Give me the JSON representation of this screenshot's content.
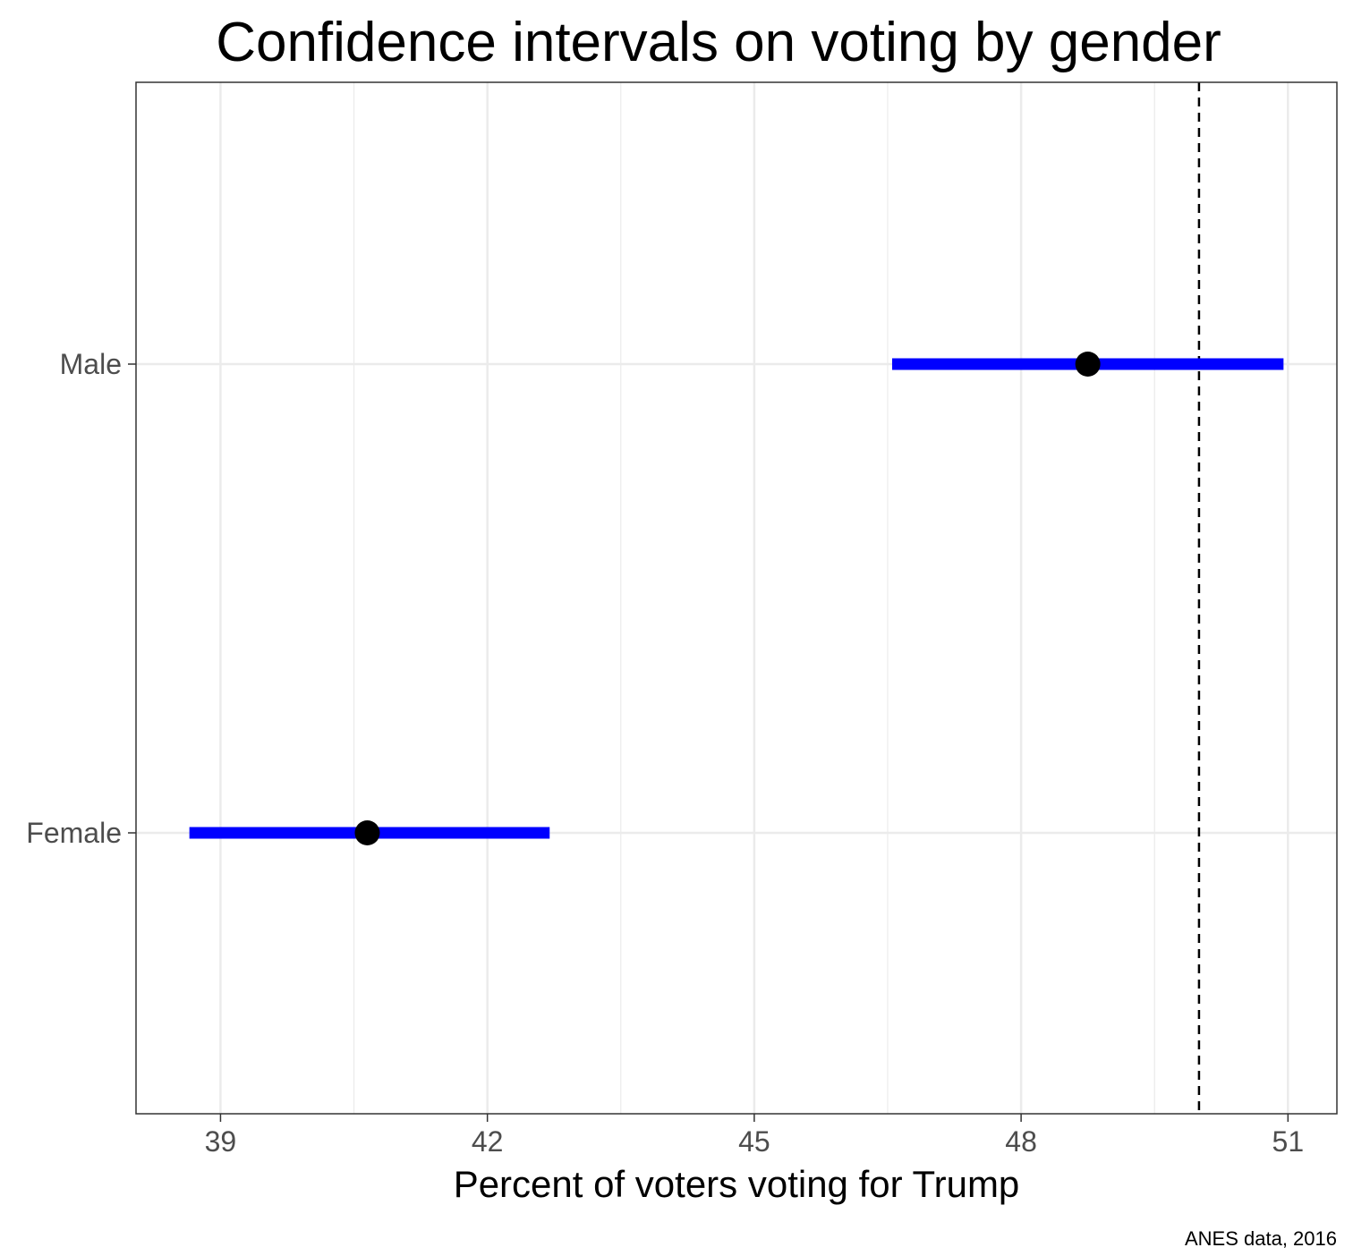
{
  "chart_data": {
    "type": "errorbar",
    "title": "Confidence intervals on voting by gender",
    "xlabel": "Percent of voters voting for Trump",
    "ylabel": "",
    "caption": "ANES data, 2016",
    "xlim": [
      38.05,
      51.55
    ],
    "x_ticks": [
      39,
      42,
      45,
      48,
      51
    ],
    "x_minor_ticks": [
      40.5,
      43.5,
      46.5,
      49.5
    ],
    "categories": [
      "Male",
      "Female"
    ],
    "points": [
      {
        "category": "Male",
        "estimate": 48.75,
        "lower": 46.55,
        "upper": 50.95
      },
      {
        "category": "Female",
        "estimate": 40.65,
        "lower": 38.65,
        "upper": 42.7
      }
    ],
    "reference_line": {
      "x": 50,
      "style": "dashed"
    },
    "colors": {
      "interval": "#0000ff",
      "point": "#000000",
      "grid": "#ebebeb",
      "reference": "#000000"
    }
  }
}
